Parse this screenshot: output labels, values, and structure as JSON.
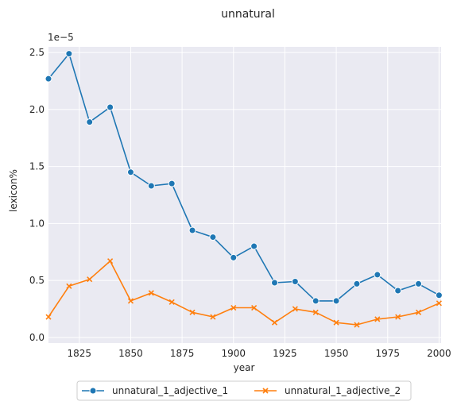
{
  "chart_data": {
    "type": "line",
    "title": "unnatural",
    "xlabel": "year",
    "ylabel": "lexicon%",
    "y_offset_label": "1e−5",
    "xlim": [
      1810,
      2001
    ],
    "ylim": [
      -0.05,
      2.55
    ],
    "x_ticks": [
      1825,
      1850,
      1875,
      1900,
      1925,
      1950,
      1975,
      2000
    ],
    "y_ticks": [
      0.0,
      0.5,
      1.0,
      1.5,
      2.0,
      2.5
    ],
    "y_tick_labels": [
      "0.0",
      "0.5",
      "1.0",
      "1.5",
      "2.0",
      "2.5"
    ],
    "grid": true,
    "legend_position": "bottom-center",
    "series": [
      {
        "name": "unnatural_1_adjective_1",
        "color": "#1f77b4",
        "marker": "circle",
        "x": [
          1810,
          1820,
          1830,
          1840,
          1850,
          1860,
          1870,
          1880,
          1890,
          1900,
          1910,
          1920,
          1930,
          1940,
          1950,
          1960,
          1970,
          1980,
          1990,
          2000
        ],
        "y": [
          2.27,
          2.49,
          1.89,
          2.02,
          1.45,
          1.33,
          1.35,
          0.94,
          0.88,
          0.7,
          0.8,
          0.48,
          0.49,
          0.32,
          0.32,
          0.47,
          0.55,
          0.41,
          0.47,
          0.37
        ]
      },
      {
        "name": "unnatural_1_adjective_2",
        "color": "#ff7f0e",
        "marker": "x",
        "x": [
          1810,
          1820,
          1830,
          1840,
          1850,
          1860,
          1870,
          1880,
          1890,
          1900,
          1910,
          1920,
          1930,
          1940,
          1950,
          1960,
          1970,
          1980,
          1990,
          2000
        ],
        "y": [
          0.18,
          0.45,
          0.51,
          0.67,
          0.32,
          0.39,
          0.31,
          0.22,
          0.18,
          0.26,
          0.26,
          0.13,
          0.25,
          0.22,
          0.13,
          0.11,
          0.16,
          0.18,
          0.22,
          0.3
        ]
      }
    ]
  }
}
